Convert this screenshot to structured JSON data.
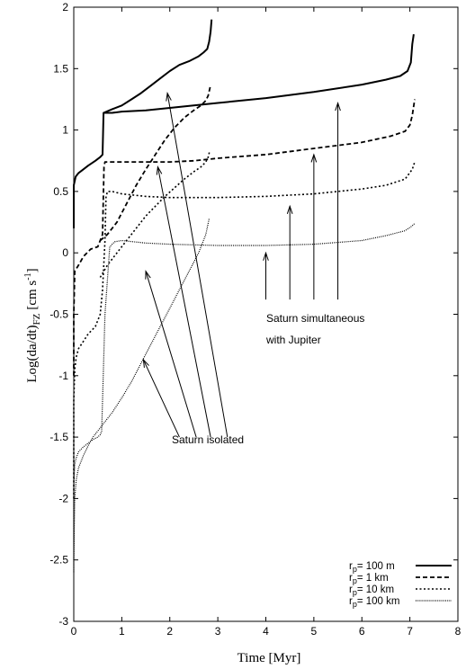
{
  "chart_data": {
    "type": "line",
    "xlabel": "Time [Myr]",
    "ylabel_main": "Log(da/dt)",
    "ylabel_sub": "FZ",
    "ylabel_unit": "[cm s",
    "ylabel_exp": "-1",
    "ylabel_close": "]",
    "xlim": [
      0,
      8
    ],
    "ylim": [
      -3,
      2
    ],
    "xticks": [
      0,
      1,
      2,
      3,
      4,
      5,
      6,
      7,
      8
    ],
    "yticks": [
      -3,
      -2.5,
      -2,
      -1.5,
      -1,
      -0.5,
      0,
      0.5,
      1,
      1.5,
      2
    ],
    "legend_position": "bottom-right",
    "series": [
      {
        "name_prefix": "r",
        "name_sub": "p",
        "name_value": "= 100 m",
        "style": "solid",
        "width": 2.0,
        "x": [
          0.0,
          0.0,
          0.04,
          0.1,
          0.2,
          0.3,
          0.45,
          0.55,
          0.6,
          0.62,
          0.8,
          1.0,
          1.5,
          2.0,
          2.5,
          3.0,
          4.0,
          5.0,
          6.0,
          6.5,
          6.8,
          6.95,
          7.02,
          7.05,
          7.08
        ]
      },
      {
        "name_prefix": "r",
        "name_sub": "p",
        "name_value": "= 1 km",
        "style": "dash",
        "width": 1.8,
        "x": [
          0.0,
          0.0,
          0.02,
          0.1,
          0.2,
          0.35,
          0.5,
          0.6,
          0.63,
          0.65,
          0.8,
          1.0,
          1.5,
          2.0,
          2.5,
          3.0,
          4.0,
          5.0,
          6.0,
          6.6,
          6.9,
          7.0,
          7.05,
          7.1
        ]
      },
      {
        "name_prefix": "r",
        "name_sub": "p",
        "name_value": "= 10 km",
        "style": "dot",
        "width": 1.6,
        "x": [
          0.0,
          0.0,
          0.02,
          0.05,
          0.1,
          0.2,
          0.3,
          0.45,
          0.55,
          0.6,
          0.65,
          0.67,
          0.7,
          0.8,
          1.0,
          1.5,
          2.0,
          3.0,
          4.0,
          5.0,
          6.0,
          6.5,
          6.9,
          7.05,
          7.1
        ]
      },
      {
        "name_prefix": "r",
        "name_sub": "p",
        "name_value": "= 100 km",
        "style": "fine",
        "width": 1.2,
        "x": [
          0.0,
          0.0,
          0.02,
          0.05,
          0.1,
          0.2,
          0.3,
          0.4,
          0.5,
          0.55,
          0.58,
          0.6,
          0.65,
          0.75,
          0.85,
          1.0,
          1.5,
          2.0,
          3.0,
          4.0,
          5.0,
          6.0,
          6.5,
          6.9,
          7.05,
          7.1
        ]
      },
      {
        "name_prefix": "r",
        "name_sub": "p",
        "name_value": "= 100 m",
        "style": "solid",
        "width": 2.0,
        "legend": false,
        "x": [
          0.62,
          0.8,
          1.0,
          1.2,
          1.4,
          1.6,
          1.8,
          2.0,
          2.2,
          2.4,
          2.6,
          2.7,
          2.78,
          2.82,
          2.85,
          2.87
        ]
      },
      {
        "name_prefix": "r",
        "name_sub": "p",
        "name_value": "= 1 km",
        "style": "dash",
        "width": 1.8,
        "legend": false,
        "x": [
          0.55,
          0.7,
          0.9,
          1.1,
          1.3,
          1.5,
          1.7,
          1.9,
          2.1,
          2.3,
          2.5,
          2.65,
          2.75,
          2.8,
          2.84
        ]
      },
      {
        "name_prefix": "r",
        "name_sub": "p",
        "name_value": "= 10 km",
        "style": "dot",
        "width": 1.6,
        "legend": false,
        "x": [
          0.55,
          0.7,
          0.9,
          1.1,
          1.3,
          1.5,
          1.7,
          1.9,
          2.1,
          2.3,
          2.5,
          2.65,
          2.75,
          2.8,
          2.83
        ]
      },
      {
        "name_prefix": "r",
        "name_sub": "p",
        "name_value": "= 100 km",
        "style": "fine",
        "width": 1.2,
        "legend": false,
        "x": [
          0.0,
          0.02,
          0.05,
          0.1,
          0.2,
          0.3,
          0.4,
          0.5,
          0.6,
          0.8,
          1.0,
          1.2,
          1.4,
          1.6,
          1.8,
          2.0,
          2.2,
          2.4,
          2.6,
          2.75,
          2.82
        ]
      }
    ],
    "series_y": [
      [
        0.2,
        0.55,
        0.62,
        0.65,
        0.68,
        0.71,
        0.75,
        0.78,
        0.8,
        1.14,
        1.14,
        1.15,
        1.16,
        1.18,
        1.2,
        1.22,
        1.26,
        1.31,
        1.37,
        1.41,
        1.44,
        1.48,
        1.55,
        1.7,
        1.78
      ],
      [
        -1.0,
        -0.5,
        -0.15,
        -0.1,
        -0.03,
        0.03,
        0.05,
        0.15,
        0.7,
        0.74,
        0.74,
        0.74,
        0.74,
        0.74,
        0.75,
        0.77,
        0.8,
        0.85,
        0.9,
        0.95,
        0.99,
        1.04,
        1.12,
        1.25
      ],
      [
        -2.0,
        -1.2,
        -0.95,
        -0.85,
        -0.78,
        -0.72,
        -0.66,
        -0.6,
        -0.5,
        -0.3,
        0.1,
        0.45,
        0.5,
        0.5,
        0.48,
        0.46,
        0.45,
        0.45,
        0.46,
        0.48,
        0.52,
        0.55,
        0.6,
        0.68,
        0.74
      ],
      [
        -2.6,
        -1.9,
        -1.72,
        -1.67,
        -1.62,
        -1.58,
        -1.55,
        -1.52,
        -1.5,
        -1.48,
        -1.45,
        -1.2,
        -0.5,
        0.05,
        0.09,
        0.1,
        0.08,
        0.07,
        0.06,
        0.06,
        0.07,
        0.1,
        0.14,
        0.18,
        0.22,
        0.24
      ],
      [
        1.14,
        1.17,
        1.2,
        1.25,
        1.3,
        1.36,
        1.42,
        1.48,
        1.53,
        1.56,
        1.6,
        1.63,
        1.66,
        1.72,
        1.8,
        1.9
      ],
      [
        0.1,
        0.15,
        0.25,
        0.4,
        0.55,
        0.68,
        0.8,
        0.92,
        1.02,
        1.1,
        1.16,
        1.2,
        1.24,
        1.28,
        1.35
      ],
      [
        -0.2,
        -0.1,
        0.0,
        0.1,
        0.2,
        0.3,
        0.38,
        0.46,
        0.53,
        0.6,
        0.66,
        0.7,
        0.74,
        0.78,
        0.83
      ],
      [
        -2.5,
        -2.0,
        -1.85,
        -1.75,
        -1.65,
        -1.57,
        -1.5,
        -1.45,
        -1.4,
        -1.3,
        -1.18,
        -1.05,
        -0.9,
        -0.75,
        -0.6,
        -0.45,
        -0.3,
        -0.15,
        0.0,
        0.15,
        0.28
      ]
    ],
    "annotations": [
      {
        "text": "Saturn simultaneous"
      },
      {
        "text": "with Jupiter"
      },
      {
        "text": "Saturn isolated"
      }
    ],
    "arrows": [
      {
        "from": [
          4.0,
          -0.38
        ],
        "to": [
          4.0,
          0.0
        ]
      },
      {
        "from": [
          4.5,
          -0.38
        ],
        "to": [
          4.5,
          0.38
        ]
      },
      {
        "from": [
          5.0,
          -0.38
        ],
        "to": [
          5.0,
          0.8
        ]
      },
      {
        "from": [
          5.5,
          -0.38
        ],
        "to": [
          5.5,
          1.22
        ]
      },
      {
        "from": [
          2.2,
          -1.5
        ],
        "to": [
          1.45,
          -0.87
        ]
      },
      {
        "from": [
          2.55,
          -1.5
        ],
        "to": [
          1.5,
          -0.15
        ]
      },
      {
        "from": [
          2.85,
          -1.5
        ],
        "to": [
          1.75,
          0.7
        ]
      },
      {
        "from": [
          3.2,
          -1.5
        ],
        "to": [
          1.95,
          1.3
        ]
      }
    ]
  }
}
